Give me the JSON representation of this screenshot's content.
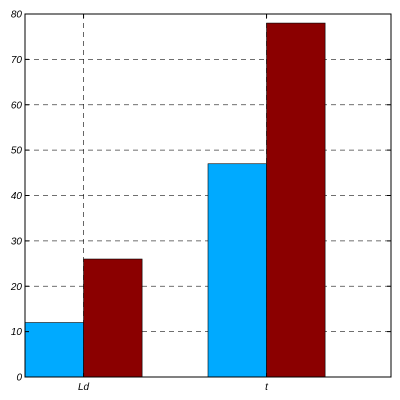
{
  "chart_data": {
    "type": "bar",
    "categories": [
      "Ld",
      "t"
    ],
    "series": [
      {
        "values": [
          12,
          47
        ],
        "color": "#00aaff"
      },
      {
        "values": [
          26,
          78
        ],
        "color": "#8b0000"
      }
    ],
    "ylim": [
      0,
      80
    ],
    "yticks": [
      0,
      10,
      20,
      30,
      40,
      50,
      60,
      70,
      80
    ],
    "ytick_labels": [
      "0",
      "10",
      "20",
      "30",
      "40",
      "50",
      "60",
      "70",
      "80"
    ],
    "grid": true,
    "title": "",
    "xlabel": "",
    "ylabel": ""
  }
}
